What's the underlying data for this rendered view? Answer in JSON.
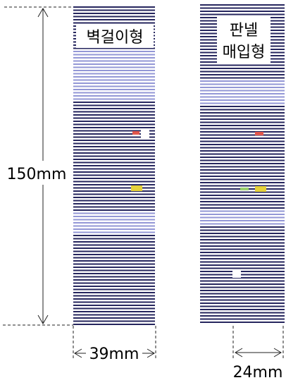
{
  "wall_type": {
    "label": "벽걸이형",
    "width": "39mm"
  },
  "panel_type": {
    "label_line1": "판넬",
    "label_line2": "매입형",
    "width": "24mm"
  },
  "height_dimension": "150mm",
  "colors": {
    "stripe": "#141450",
    "highlight_stripe": "#6f74c8",
    "dimension_line": "#222222",
    "led_red": "#e2574c",
    "led_yellow": "#e6d23a",
    "led_white": "#ffffff"
  }
}
